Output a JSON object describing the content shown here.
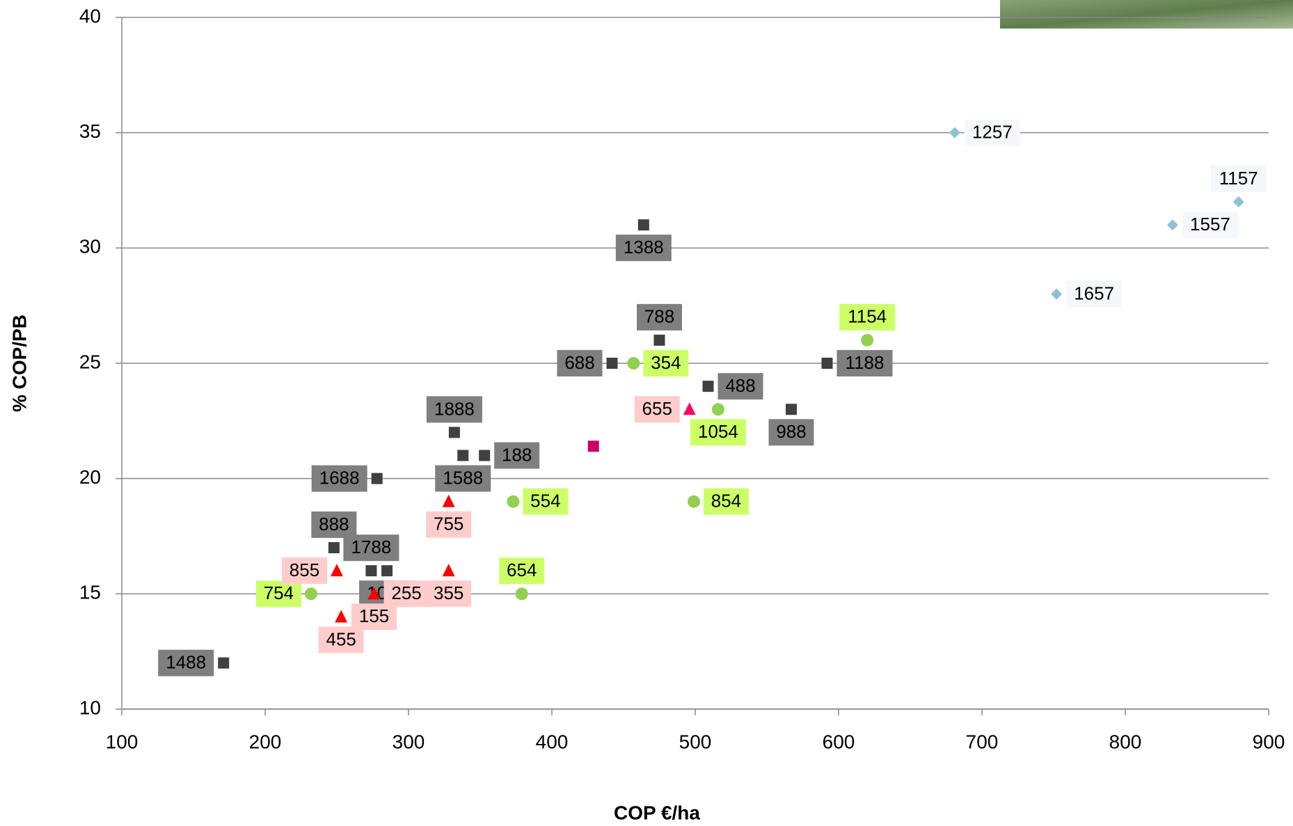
{
  "chart_data": {
    "type": "scatter",
    "x_label": "COP €/ha",
    "y_label": "% COP/PB",
    "xlim": [
      100,
      900
    ],
    "xticks": [
      100,
      200,
      300,
      400,
      500,
      600,
      700,
      800,
      900
    ],
    "ylim": [
      10,
      40
    ],
    "yticks": [
      10,
      15,
      20,
      25,
      30,
      35,
      40
    ],
    "grid": true,
    "series": [
      {
        "marker": "square",
        "color": "#404040",
        "label_bg": "#7f7f7f",
        "x": [
          464,
          475,
          442,
          509,
          567,
          592,
          332,
          353,
          338,
          278,
          248,
          274,
          285,
          171
        ],
        "values": [
          31,
          26,
          25,
          24,
          23,
          25,
          22,
          21,
          21,
          20,
          17,
          16,
          16,
          12
        ],
        "labels": [
          "1388",
          "788",
          "688",
          "488",
          "988",
          "1188",
          "1888",
          "188",
          "1588",
          "1688",
          "888",
          "1788",
          "1088",
          "1488"
        ]
      },
      {
        "marker": "circle",
        "color": "#92d050",
        "label_bg": "#ccff66",
        "x": [
          457,
          516,
          620,
          373,
          499,
          379,
          232
        ],
        "values": [
          25,
          23,
          26,
          19,
          19,
          15,
          15
        ],
        "labels": [
          "354",
          "1054",
          "1154",
          "554",
          "854",
          "654",
          "754"
        ]
      },
      {
        "marker": "triangle",
        "color": "#ff0000",
        "label_bg": "#ffcccc",
        "x": [
          496,
          328,
          250,
          276,
          276,
          253,
          328
        ],
        "values": [
          23,
          19,
          16,
          15,
          15,
          14,
          16
        ],
        "labels": [
          "655",
          "755",
          "855",
          "255",
          "155",
          "455",
          "355"
        ]
      },
      {
        "marker": "diamond",
        "color": "#8cc3d0",
        "label_bg": "#f4f8fa",
        "x": [
          681,
          879,
          833,
          752
        ],
        "values": [
          35,
          32,
          31,
          28
        ],
        "labels": [
          "1257",
          "1157",
          "1557",
          "1657"
        ]
      },
      {
        "marker": "square",
        "color": "#cc0066",
        "x": [
          429
        ],
        "values": [
          21.4
        ]
      }
    ]
  }
}
